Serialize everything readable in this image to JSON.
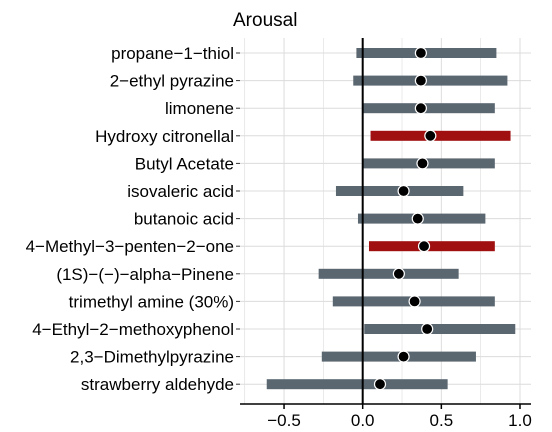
{
  "chart_data": {
    "type": "dot-interval",
    "title": "Arousal",
    "xlabel": "",
    "ylabel": "",
    "xlim": [
      -0.78,
      1.07
    ],
    "x_ticks": [
      -0.5,
      0.0,
      0.5,
      1.0
    ],
    "x_tick_labels": [
      "−0.5",
      "0.0",
      "0.5",
      "1.0"
    ],
    "grid": true,
    "reference_line": 0.0,
    "colors": {
      "default_interval": "#5a6670",
      "highlight_interval": "#a01010",
      "point": "#000000",
      "reference_line": "#000000",
      "grid": "#dcdcdc"
    },
    "categories": [
      "propane−1−thiol",
      "2−ethyl pyrazine",
      "limonene",
      "Hydroxy citronellal",
      "Butyl Acetate",
      "isovaleric acid",
      "butanoic acid",
      "4−Methyl−3−penten−2−one",
      "(1S)−(−)−alpha−Pinene",
      "trimethyl amine (30%)",
      "4−Ethyl−2−methoxyphenol",
      "2,3−Dimethylpyrazine",
      "strawberry aldehyde"
    ],
    "estimates": [
      0.37,
      0.37,
      0.37,
      0.43,
      0.38,
      0.26,
      0.35,
      0.39,
      0.23,
      0.33,
      0.41,
      0.26,
      0.11
    ],
    "lower": [
      -0.04,
      -0.06,
      0.0,
      0.05,
      0.0,
      -0.17,
      -0.03,
      0.04,
      -0.28,
      -0.19,
      0.01,
      -0.26,
      -0.61
    ],
    "upper": [
      0.85,
      0.92,
      0.84,
      0.94,
      0.84,
      0.64,
      0.78,
      0.84,
      0.61,
      0.84,
      0.97,
      0.72,
      0.54
    ],
    "highlighted": [
      false,
      false,
      false,
      true,
      false,
      false,
      false,
      true,
      false,
      false,
      false,
      false,
      false
    ]
  }
}
